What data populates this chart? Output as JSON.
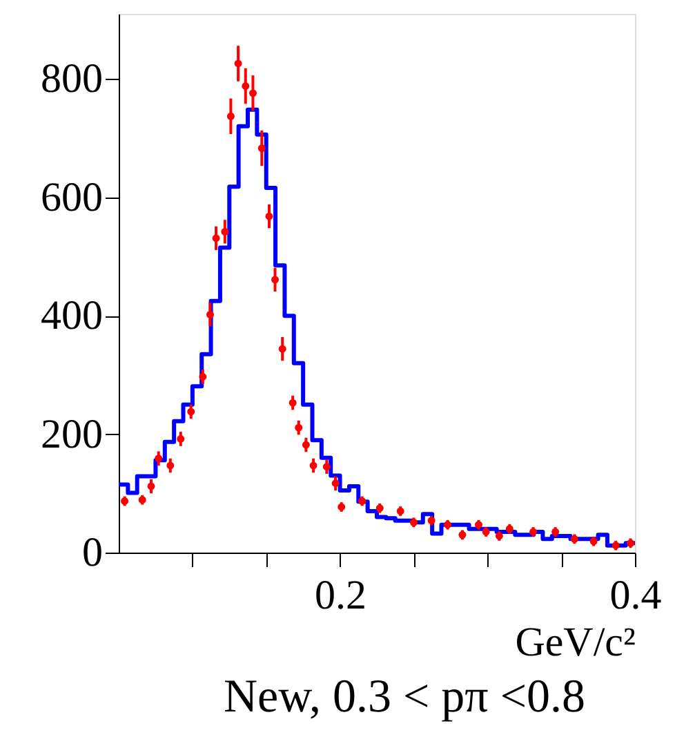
{
  "chart_data": {
    "type": "histogram",
    "xlabel": "GeV/c²",
    "annotations": [
      "New, 0.3 < pπ <0.8"
    ],
    "xlim": [
      0.05,
      0.4
    ],
    "ylim": [
      0,
      910
    ],
    "xticks": [
      {
        "value": 0.1,
        "label": null
      },
      {
        "value": 0.15,
        "label": null
      },
      0.2,
      {
        "value": 0.25,
        "label": null
      },
      {
        "value": 0.3,
        "label": null
      },
      {
        "value": 0.35,
        "label": null
      },
      0.4
    ],
    "yticks": [
      0,
      200,
      400,
      600,
      800
    ],
    "grid": false,
    "marker": "circle",
    "series": [
      {
        "type": "histogram",
        "color": "#0000ff",
        "bins": [
          0.05,
          0.05625,
          0.0625,
          0.06875,
          0.075,
          0.08125,
          0.0875,
          0.09375,
          0.1,
          0.10625,
          0.1125,
          0.11875,
          0.125,
          0.13125,
          0.1375,
          0.14375,
          0.15,
          0.15625,
          0.1625,
          0.16875,
          0.175,
          0.18125,
          0.1875,
          0.19375,
          0.2,
          0.20625,
          0.2125,
          0.21875,
          0.225,
          0.23125,
          0.2375,
          0.24375,
          0.25,
          0.25625,
          0.2625,
          0.26875,
          0.275,
          0.28125,
          0.2875,
          0.29375,
          0.3,
          0.30625,
          0.3125,
          0.31875,
          0.325,
          0.33125,
          0.3375,
          0.34375,
          0.35,
          0.35625,
          0.3625,
          0.36875,
          0.375,
          0.38125,
          0.3875,
          0.39375,
          0.4
        ],
        "values": [
          115,
          101,
          129,
          129,
          156,
          187,
          222,
          250,
          281,
          335,
          425,
          515,
          618,
          720,
          748,
          706,
          616,
          485,
          400,
          320,
          250,
          190,
          160,
          130,
          105,
          112,
          86,
          70,
          60,
          58,
          54,
          54,
          51,
          65,
          32,
          47,
          47,
          47,
          40,
          40,
          40,
          35,
          35,
          30,
          30,
          35,
          23,
          28,
          28,
          23,
          23,
          23,
          30,
          12,
          12,
          16
        ]
      },
      {
        "type": "scatter",
        "color": "#ff0000",
        "x": [
          0.054,
          0.066,
          0.072,
          0.077,
          0.085,
          0.092,
          0.099,
          0.107,
          0.112,
          0.116,
          0.122,
          0.126,
          0.131,
          0.136,
          0.141,
          0.147,
          0.152,
          0.156,
          0.161,
          0.168,
          0.172,
          0.177,
          0.182,
          0.191,
          0.197,
          0.201,
          0.215,
          0.227,
          0.241,
          0.25,
          0.262,
          0.273,
          0.283,
          0.294,
          0.299,
          0.308,
          0.315,
          0.331,
          0.346,
          0.359,
          0.372,
          0.387,
          0.397
        ],
        "values": [
          87,
          89,
          112,
          159,
          147,
          192,
          238,
          297,
          402,
          531,
          542,
          737,
          826,
          788,
          776,
          683,
          568,
          461,
          344,
          253,
          211,
          182,
          147,
          145,
          117,
          77,
          87,
          75,
          70,
          51,
          54,
          47,
          30,
          47,
          35,
          28,
          40,
          35,
          35,
          23,
          19,
          12,
          16
        ],
        "errors": [
          8,
          8,
          12,
          12,
          12,
          12,
          12,
          12,
          20,
          20,
          20,
          30,
          30,
          30,
          30,
          30,
          20,
          20,
          20,
          12,
          12,
          12,
          12,
          12,
          12,
          8,
          8,
          8,
          8,
          8,
          8,
          8,
          8,
          8,
          8,
          8,
          8,
          8,
          8,
          8,
          8,
          8,
          8
        ]
      }
    ]
  }
}
